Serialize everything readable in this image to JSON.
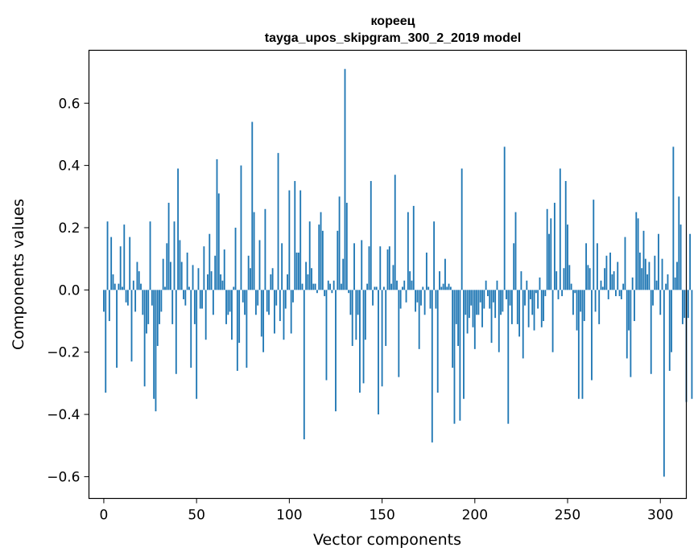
{
  "chart_data": {
    "type": "bar",
    "title": "кореец",
    "subtitle": "tayga_upos_skipgram_300_2_2019 model",
    "xlabel": "Vector components",
    "ylabel": "Components values",
    "xlim": [
      -8,
      314
    ],
    "ylim": [
      -0.67,
      0.77
    ],
    "xticks": [
      0,
      50,
      100,
      150,
      200,
      250,
      300
    ],
    "yticks": [
      -0.6,
      -0.4,
      -0.2,
      0.0,
      0.2,
      0.4,
      0.6
    ],
    "ytick_labels": [
      "−0.6",
      "−0.4",
      "−0.2",
      "0.0",
      "0.2",
      "0.4",
      "0.6"
    ],
    "bar_color": "#1f77b4",
    "values": [
      -0.07,
      -0.33,
      0.22,
      -0.1,
      0.17,
      0.05,
      0.02,
      -0.25,
      0.02,
      0.14,
      0.01,
      0.21,
      -0.04,
      -0.05,
      0.17,
      -0.23,
      0.03,
      -0.07,
      0.09,
      0.06,
      0.02,
      -0.08,
      -0.31,
      -0.14,
      -0.11,
      0.22,
      -0.05,
      -0.35,
      -0.39,
      -0.18,
      -0.11,
      -0.07,
      0.1,
      0.01,
      0.15,
      0.28,
      0.09,
      -0.11,
      0.22,
      -0.27,
      0.39,
      0.16,
      0.09,
      -0.03,
      -0.05,
      0.12,
      0.01,
      -0.25,
      0.08,
      -0.11,
      -0.35,
      0.07,
      -0.06,
      -0.06,
      0.14,
      -0.16,
      0.05,
      0.18,
      0.06,
      -0.08,
      0.11,
      0.42,
      0.31,
      0.05,
      0.03,
      0.13,
      -0.11,
      -0.08,
      -0.07,
      -0.16,
      0.01,
      0.2,
      -0.26,
      -0.17,
      0.4,
      -0.04,
      -0.08,
      -0.25,
      0.11,
      0.07,
      0.54,
      0.25,
      -0.08,
      -0.05,
      0.16,
      -0.15,
      -0.2,
      0.26,
      -0.07,
      -0.08,
      0.05,
      0.07,
      -0.14,
      -0.05,
      0.44,
      -0.1,
      0.15,
      -0.16,
      -0.06,
      0.05,
      0.32,
      -0.14,
      -0.04,
      0.35,
      0.12,
      0.12,
      0.32,
      0.02,
      -0.48,
      0.09,
      0.05,
      0.22,
      0.07,
      0.02,
      0.02,
      -0.01,
      0.21,
      0.25,
      0.19,
      -0.02,
      -0.29,
      0.03,
      0.02,
      -0.01,
      0.03,
      -0.39,
      0.19,
      0.3,
      0.02,
      0.1,
      0.71,
      0.28,
      -0.01,
      -0.08,
      -0.18,
      0.15,
      -0.16,
      -0.08,
      -0.33,
      0.16,
      -0.3,
      -0.16,
      0.02,
      0.14,
      0.35,
      -0.05,
      0.01,
      0.01,
      -0.4,
      0.14,
      -0.31,
      0.01,
      -0.18,
      0.13,
      0.14,
      0.02,
      0.08,
      0.37,
      0.03,
      -0.28,
      -0.06,
      0.01,
      0.03,
      -0.04,
      0.25,
      0.06,
      0.03,
      0.27,
      -0.07,
      -0.04,
      -0.19,
      -0.05,
      0.01,
      -0.08,
      0.12,
      0.01,
      -0.06,
      -0.49,
      0.22,
      -0.06,
      -0.33,
      0.06,
      0.01,
      0.02,
      0.1,
      0.01,
      0.02,
      0.01,
      -0.25,
      -0.43,
      -0.11,
      -0.18,
      -0.42,
      0.39,
      -0.35,
      -0.08,
      -0.14,
      -0.09,
      -0.05,
      -0.12,
      -0.19,
      -0.08,
      -0.08,
      -0.04,
      -0.12,
      -0.06,
      0.03,
      -0.02,
      -0.06,
      -0.17,
      -0.04,
      -0.09,
      0.03,
      -0.2,
      -0.08,
      -0.07,
      0.46,
      -0.03,
      -0.43,
      -0.05,
      -0.11,
      0.15,
      0.25,
      -0.11,
      -0.15,
      0.06,
      -0.22,
      -0.05,
      0.03,
      -0.12,
      -0.03,
      -0.08,
      -0.13,
      -0.01,
      -0.06,
      0.04,
      -0.12,
      -0.1,
      -0.02,
      0.26,
      0.18,
      0.23,
      -0.2,
      0.28,
      0.06,
      -0.03,
      0.39,
      -0.02,
      0.07,
      0.35,
      0.21,
      0.08,
      0.02,
      -0.08,
      -0.01,
      -0.13,
      -0.35,
      -0.07,
      -0.35,
      -0.1,
      0.15,
      0.08,
      0.07,
      -0.29,
      0.29,
      -0.07,
      0.15,
      -0.11,
      0.03,
      0.01,
      0.07,
      0.11,
      -0.03,
      0.12,
      0.05,
      0.06,
      -0.02,
      0.09,
      -0.02,
      -0.03,
      0.02,
      0.17,
      -0.22,
      -0.13,
      -0.28,
      0.04,
      -0.1,
      0.25,
      0.23,
      0.12,
      0.07,
      0.19,
      0.1,
      0.05,
      0.09,
      -0.27,
      -0.05,
      0.11,
      0.03,
      0.18,
      -0.08,
      0.1,
      -0.6,
      0.02,
      0.05,
      -0.26,
      -0.2,
      0.46,
      0.04,
      0.09,
      0.3,
      0.21,
      -0.11,
      -0.09,
      -0.36,
      -0.09,
      0.18,
      -0.35
    ]
  }
}
